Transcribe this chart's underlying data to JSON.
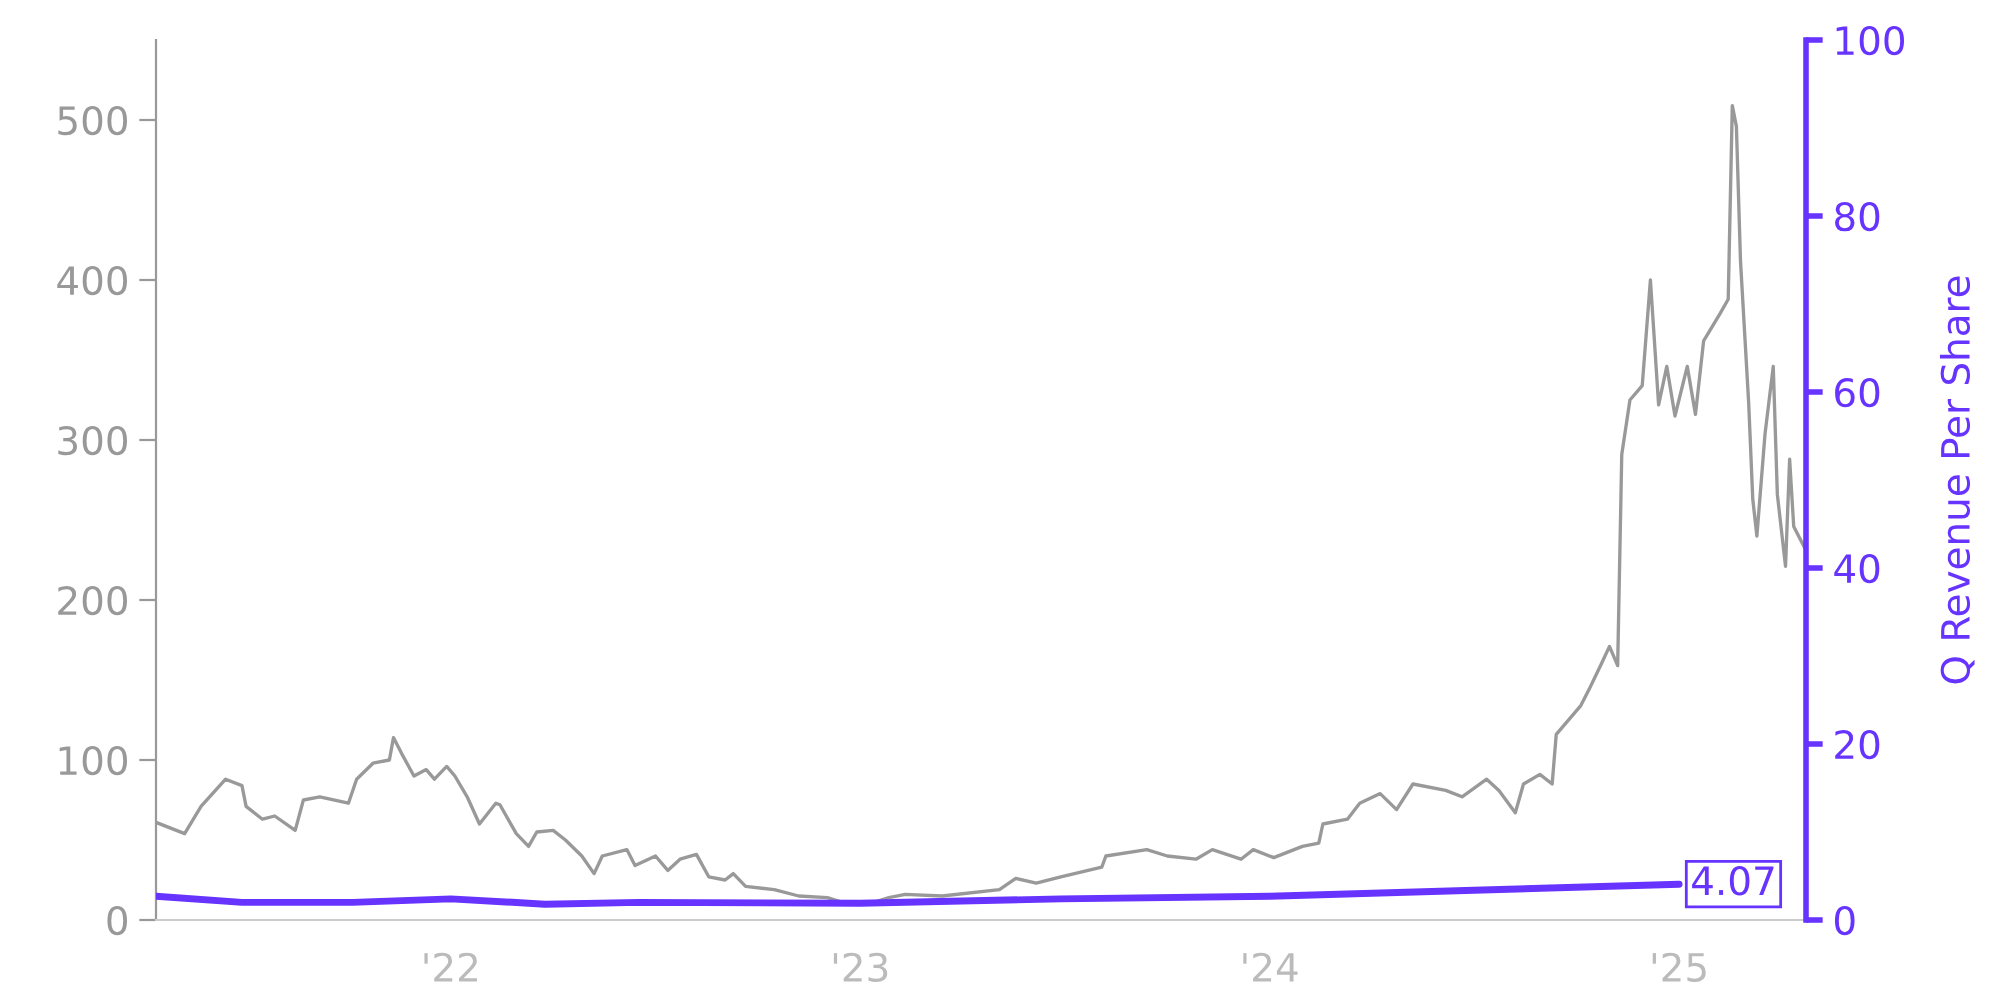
{
  "chart_data": {
    "type": "line",
    "y2label": "Q Revenue Per Share",
    "xlim": [
      2021.28,
      2025.31
    ],
    "ylim": [
      0,
      550
    ],
    "y2lim": [
      0,
      100
    ],
    "xticks": [
      {
        "value": 2022,
        "label": "'22"
      },
      {
        "value": 2023,
        "label": "'23"
      },
      {
        "value": 2024,
        "label": "'24"
      },
      {
        "value": 2025,
        "label": "'25"
      }
    ],
    "yticks": [
      0,
      100,
      200,
      300,
      400,
      500
    ],
    "y2ticks": [
      0,
      20,
      40,
      60,
      80,
      100
    ],
    "grid": false,
    "series": [
      {
        "color": "#999999",
        "x": [
          2021.28,
          2021.35,
          2021.39,
          2021.45,
          2021.49,
          2021.5,
          2021.54,
          2021.57,
          2021.62,
          2021.64,
          2021.68,
          2021.75,
          2021.77,
          2021.81,
          2021.85,
          2021.86,
          2021.88,
          2021.91,
          2021.94,
          2021.96,
          2021.99,
          2022.01,
          2022.04,
          2022.07,
          2022.11,
          2022.12,
          2022.16,
          2022.19,
          2022.21,
          2022.25,
          2022.28,
          2022.32,
          2022.35,
          2022.37,
          2022.43,
          2022.45,
          2022.5,
          2022.53,
          2022.56,
          2022.6,
          2022.63,
          2022.67,
          2022.69,
          2022.72,
          2022.79,
          2022.85,
          2022.92,
          2022.97,
          2023.02,
          2023.07,
          2023.11,
          2023.2,
          2023.34,
          2023.38,
          2023.43,
          2023.49,
          2023.59,
          2023.6,
          2023.7,
          2023.75,
          2023.82,
          2023.86,
          2023.93,
          2023.96,
          2024.01,
          2024.08,
          2024.12,
          2024.13,
          2024.19,
          2024.22,
          2024.27,
          2024.31,
          2024.35,
          2024.43,
          2024.47,
          2024.53,
          2024.56,
          2024.6,
          2024.62,
          2024.66,
          2024.69,
          2024.7,
          2024.76,
          2024.78,
          2024.81,
          2024.83,
          2024.85,
          2024.86,
          2024.88,
          2024.91,
          2024.93,
          2024.95,
          2024.97,
          2024.99,
          2025.02,
          2025.04,
          2025.06,
          2025.1,
          2025.12,
          2025.13,
          2025.14,
          2025.15,
          2025.17,
          2025.18,
          2025.19,
          2025.21,
          2025.23,
          2025.24,
          2025.26,
          2025.27,
          2025.28,
          2025.31
        ],
        "values": [
          61,
          54,
          71,
          88,
          84,
          71,
          63,
          65,
          56,
          75,
          77,
          73,
          88,
          98,
          100,
          114,
          104,
          90,
          94,
          88,
          96,
          90,
          77,
          60,
          73,
          72,
          54,
          46,
          55,
          56,
          50,
          40,
          29,
          40,
          44,
          34,
          40,
          31,
          38,
          41,
          27,
          25,
          29,
          21,
          19,
          15,
          14,
          10,
          10,
          14,
          16,
          15,
          19,
          26,
          23,
          27,
          33,
          40,
          44,
          40,
          38,
          44,
          38,
          44,
          39,
          46,
          48,
          60,
          63,
          73,
          79,
          69,
          85,
          81,
          77,
          88,
          81,
          67,
          85,
          91,
          85,
          116,
          134,
          144,
          160,
          171,
          159,
          291,
          325,
          334,
          400,
          322,
          346,
          315,
          346,
          316,
          362,
          379,
          388,
          509,
          496,
          412,
          323,
          263,
          240,
          304,
          346,
          266,
          221,
          288,
          246,
          231
        ]
      },
      {
        "name": null,
        "color": "#6633ff",
        "axis": "y2",
        "x": [
          2021.28,
          2021.49,
          2021.76,
          2022.0,
          2022.23,
          2022.46,
          2023.0,
          2023.49,
          2024.0,
          2024.52,
          2025.0
        ],
        "values": [
          2.7,
          2.0,
          2.0,
          2.4,
          1.8,
          2.0,
          1.9,
          2.4,
          2.7,
          3.4,
          4.07
        ],
        "value_labels": [
          null,
          null,
          null,
          null,
          null,
          null,
          null,
          null,
          null,
          null,
          "4.07"
        ]
      }
    ]
  }
}
